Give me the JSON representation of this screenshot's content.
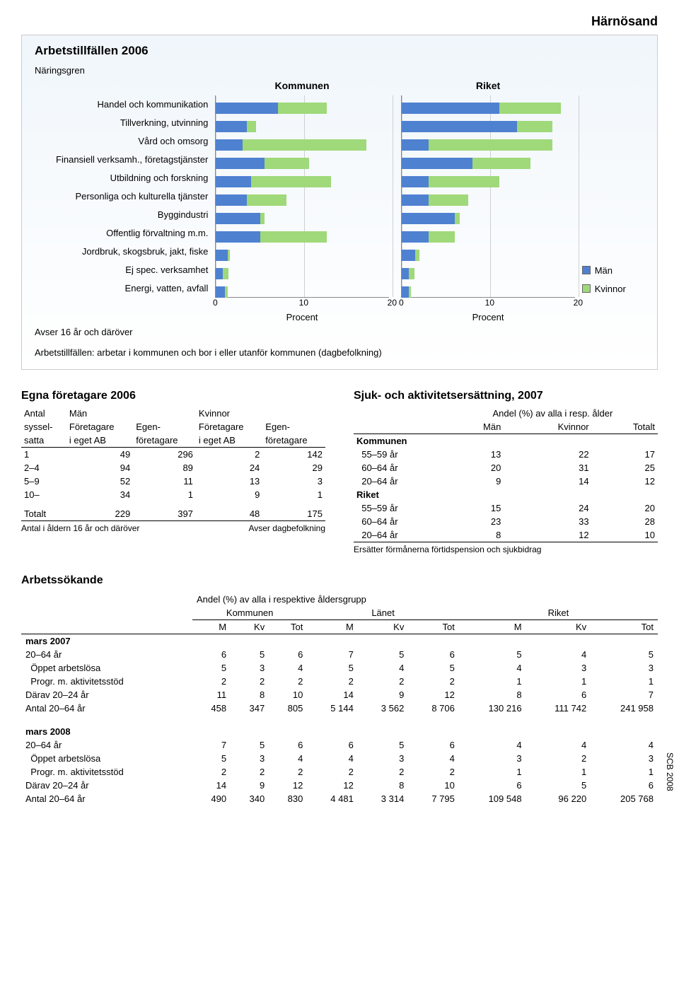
{
  "location": "Härnösand",
  "source_tag": "SCB 2008",
  "panel": {
    "title": "Arbetstillfällen 2006",
    "subtitle": "Näringsgren",
    "kommunen_label": "Kommunen",
    "riket_label": "Riket",
    "categories": [
      "Handel och kommunikation",
      "Tillverkning, utvinning",
      "Vård och omsorg",
      "Finansiell verksamh., företagstjänster",
      "Utbildning och forskning",
      "Personliga och kulturella tjänster",
      "Byggindustri",
      "Offentlig förvaltning m.m.",
      "Jordbruk, skogsbruk, jakt, fiske",
      "Ej spec. verksamhet",
      "Energi, vatten, avfall"
    ],
    "colors": {
      "men": "#4f81d1",
      "women": "#9fd97a"
    },
    "legend": {
      "men": "Män",
      "women": "Kvinnor"
    },
    "xmax": 20,
    "xticks": [
      0,
      10,
      20
    ],
    "xlabel": "Procent",
    "kommunen": {
      "men": [
        7.0,
        3.5,
        3.0,
        5.5,
        4.0,
        3.5,
        5.0,
        5.0,
        1.3,
        0.8,
        1.0
      ],
      "women": [
        5.5,
        1.0,
        14.0,
        5.0,
        9.0,
        4.5,
        0.5,
        7.5,
        0.3,
        0.6,
        0.3
      ]
    },
    "riket": {
      "men": [
        11.0,
        13.0,
        3.0,
        8.0,
        3.0,
        3.0,
        6.0,
        3.0,
        1.5,
        0.8,
        0.8
      ],
      "women": [
        7.0,
        4.0,
        14.0,
        6.5,
        8.0,
        4.5,
        0.5,
        3.0,
        0.5,
        0.6,
        0.2
      ]
    },
    "footer_left": "Avser 16 år och däröver",
    "footer_note": "Arbetstillfällen: arbetar i kommunen och bor i eller utanför kommunen (dagbefolkning)"
  },
  "egna": {
    "title": "Egna företagare 2006",
    "head": {
      "antal": "Antal",
      "man": "Män",
      "kvinnor": "Kvinnor",
      "syssel": "syssel-",
      "foretagare": "Företagare",
      "egen": "Egen-",
      "satta": "satta",
      "iegetab": "i eget AB",
      "foretagare2": "företagare"
    },
    "rows": [
      {
        "k": "1",
        "a": "49",
        "b": "296",
        "c": "2",
        "d": "142"
      },
      {
        "k": "2–4",
        "a": "94",
        "b": "89",
        "c": "24",
        "d": "29"
      },
      {
        "k": "5–9",
        "a": "52",
        "b": "11",
        "c": "13",
        "d": "3"
      },
      {
        "k": "10–",
        "a": "34",
        "b": "1",
        "c": "9",
        "d": "1"
      }
    ],
    "total": {
      "k": "Totalt",
      "a": "229",
      "b": "397",
      "c": "48",
      "d": "175"
    },
    "note_left": "Antal i åldern 16 år och däröver",
    "note_right": "Avser dagbefolkning"
  },
  "sjuk": {
    "title": "Sjuk- och aktivitetsersättning,  2007",
    "sub": "Andel (%) av alla i resp. ålder",
    "cols": {
      "man": "Män",
      "kvinnor": "Kvinnor",
      "totalt": "Totalt"
    },
    "kommunen_label": "Kommunen",
    "riket_label": "Riket",
    "kommunen": [
      {
        "k": "55–59 år",
        "m": "13",
        "kv": "22",
        "t": "17"
      },
      {
        "k": "60–64 år",
        "m": "20",
        "kv": "31",
        "t": "25"
      },
      {
        "k": "20–64 år",
        "m": "9",
        "kv": "14",
        "t": "12"
      }
    ],
    "riket": [
      {
        "k": "55–59 år",
        "m": "15",
        "kv": "24",
        "t": "20"
      },
      {
        "k": "60–64 år",
        "m": "23",
        "kv": "33",
        "t": "28"
      },
      {
        "k": "20–64 år",
        "m": "8",
        "kv": "12",
        "t": "10"
      }
    ],
    "note": "Ersätter förmånerna förtidspension och sjukbidrag"
  },
  "arbets": {
    "title": "Arbetssökande",
    "sub": "Andel (%) av alla i respektive åldersgrupp",
    "groups": {
      "kommunen": "Kommunen",
      "lanet": "Länet",
      "riket": "Riket"
    },
    "cols": {
      "m": "M",
      "kv": "Kv",
      "tot": "Tot"
    },
    "y2007": "mars 2007",
    "y2008": "mars 2008",
    "rows2007": [
      {
        "k": "20–64 år",
        "v": [
          "6",
          "5",
          "6",
          "7",
          "5",
          "6",
          "5",
          "4",
          "5"
        ]
      },
      {
        "k": "  Öppet arbetslösa",
        "v": [
          "5",
          "3",
          "4",
          "5",
          "4",
          "5",
          "4",
          "3",
          "3"
        ]
      },
      {
        "k": "  Progr. m. aktivitetsstöd",
        "v": [
          "2",
          "2",
          "2",
          "2",
          "2",
          "2",
          "1",
          "1",
          "1"
        ]
      },
      {
        "k": "Därav 20–24 år",
        "v": [
          "11",
          "8",
          "10",
          "14",
          "9",
          "12",
          "8",
          "6",
          "7"
        ]
      },
      {
        "k": "Antal 20–64 år",
        "v": [
          "458",
          "347",
          "805",
          "5 144",
          "3 562",
          "8 706",
          "130 216",
          "111 742",
          "241 958"
        ]
      }
    ],
    "rows2008": [
      {
        "k": "20–64 år",
        "v": [
          "7",
          "5",
          "6",
          "6",
          "5",
          "6",
          "4",
          "4",
          "4"
        ]
      },
      {
        "k": "  Öppet arbetslösa",
        "v": [
          "5",
          "3",
          "4",
          "4",
          "3",
          "4",
          "3",
          "2",
          "3"
        ]
      },
      {
        "k": "  Progr. m. aktivitetsstöd",
        "v": [
          "2",
          "2",
          "2",
          "2",
          "2",
          "2",
          "1",
          "1",
          "1"
        ]
      },
      {
        "k": "Därav 20–24 år",
        "v": [
          "14",
          "9",
          "12",
          "12",
          "8",
          "10",
          "6",
          "5",
          "6"
        ]
      },
      {
        "k": "Antal 20–64 år",
        "v": [
          "490",
          "340",
          "830",
          "4 481",
          "3 314",
          "7 795",
          "109 548",
          "96 220",
          "205 768"
        ]
      }
    ]
  }
}
